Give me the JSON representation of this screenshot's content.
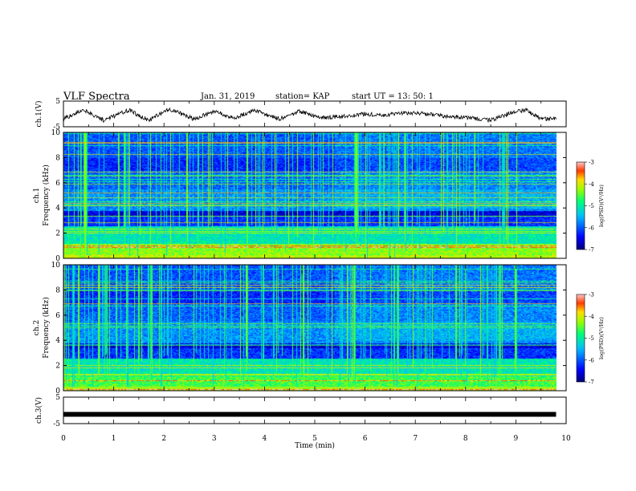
{
  "header": {
    "title": "VLF Spectra",
    "date": "Jan. 31, 2019",
    "station": "station= KAP",
    "start": "start  UT  =   13: 50: 1"
  },
  "chart_data": [
    {
      "type": "line",
      "name": "ch1-waveform",
      "ylabel": "ch.1(V)",
      "ylim": [
        -5,
        5
      ],
      "y_ticks": [
        "5",
        "-5"
      ],
      "xlim": [
        0,
        10
      ],
      "trend": {
        "x": [
          0,
          0.4,
          0.8,
          1.3,
          1.7,
          2.1,
          2.6,
          3.0,
          3.4,
          3.8,
          4.3,
          4.7,
          5.1,
          5.5,
          6.0,
          6.4,
          6.8,
          7.2,
          7.7,
          8.1,
          8.5,
          8.9,
          9.2,
          9.5,
          9.8
        ],
        "y": [
          -2,
          1.5,
          -2.5,
          1.5,
          -2.5,
          2,
          -2,
          1,
          -1.5,
          1.5,
          -2,
          1,
          -1.5,
          -1,
          0,
          -0.5,
          0.5,
          0,
          -1,
          -1.5,
          -2.5,
          0.5,
          1.5,
          -2,
          -2
        ]
      }
    },
    {
      "type": "heatmap",
      "name": "ch1-spectrogram",
      "ylabel": "ch.1",
      "ylabel2": "Frequency (kHz)",
      "ylim": [
        0,
        10
      ],
      "y_ticks": [
        "0",
        "2",
        "4",
        "6",
        "8",
        "10"
      ],
      "xlim": [
        0,
        10
      ],
      "colorbar": {
        "ticks": [
          "-3",
          "-4",
          "-5",
          "-6",
          "-7"
        ],
        "range": [
          -7,
          -3
        ],
        "label": "log(PSD)(V²/Hz)"
      }
    },
    {
      "type": "heatmap",
      "name": "ch2-spectrogram",
      "ylabel": "ch.2",
      "ylabel2": "Frequency (kHz)",
      "ylim": [
        0,
        10
      ],
      "y_ticks": [
        "0",
        "2",
        "4",
        "6",
        "8",
        "10"
      ],
      "xlim": [
        0,
        10
      ],
      "colorbar": {
        "ticks": [
          "-3",
          "-4",
          "-5",
          "-6",
          "-7"
        ],
        "range": [
          -7,
          -3
        ],
        "label": "log(PSD)(V²/Hz)"
      }
    },
    {
      "type": "line",
      "name": "ch3-waveform",
      "ylabel": "ch.3(V)",
      "ylim": [
        -5,
        5
      ],
      "y_ticks": [
        "5",
        "-5"
      ],
      "xlim": [
        0,
        10
      ],
      "trend": {
        "x": [
          0,
          9.8
        ],
        "y": [
          -1.5,
          -1.5
        ]
      }
    }
  ],
  "x_axis": {
    "label": "Time  (min)",
    "ticks": [
      "0",
      "1",
      "2",
      "3",
      "4",
      "5",
      "6",
      "7",
      "8",
      "9",
      "10"
    ]
  }
}
